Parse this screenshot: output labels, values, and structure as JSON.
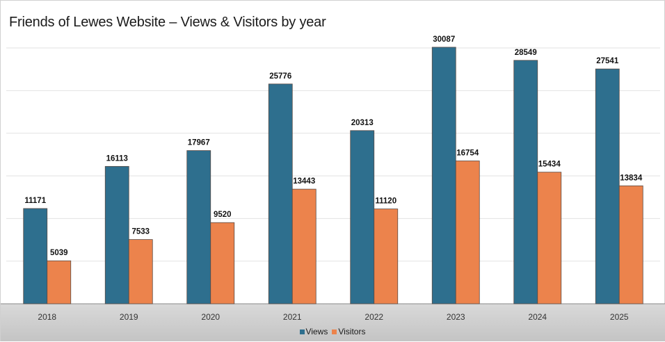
{
  "chart_data": {
    "type": "bar",
    "title": "Friends of Lewes Website – Views & Visitors by year",
    "categories": [
      "2018",
      "2019",
      "2020",
      "2021",
      "2022",
      "2023",
      "2024",
      "2025"
    ],
    "series": [
      {
        "name": "Views",
        "values": [
          11171,
          16113,
          17967,
          25776,
          20313,
          30087,
          28549,
          27541
        ],
        "color": "#2e6f8e"
      },
      {
        "name": "Visitors",
        "values": [
          5039,
          7533,
          9520,
          13443,
          11120,
          16754,
          15434,
          13834
        ],
        "color": "#ec834c"
      }
    ],
    "ylim": [
      0,
      30000
    ],
    "y_tick_labels_shown": false,
    "grid": true,
    "legend": "bottom-center",
    "axis_band_color": "#cfcfcf"
  }
}
